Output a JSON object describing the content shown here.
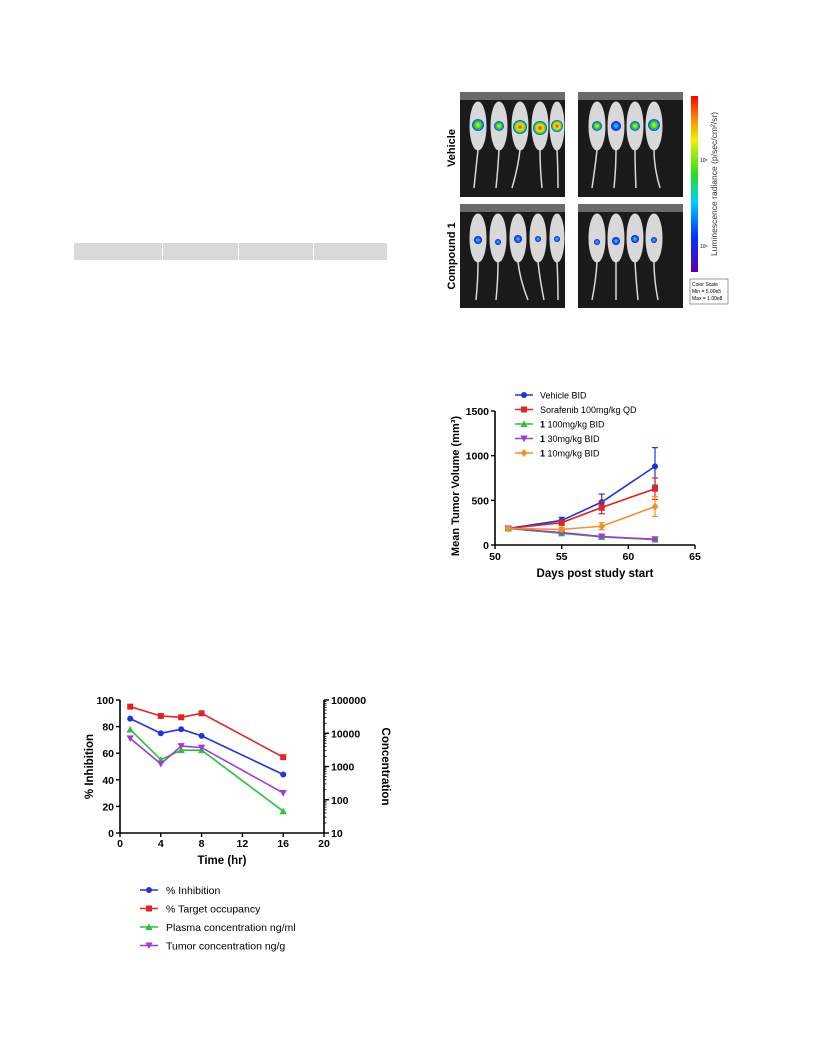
{
  "figure_imaging": {
    "row_labels": [
      "Vehicle",
      "Compound 1"
    ],
    "colorbar_label": "Luminescence radiance (p/sec/cm²/sr)",
    "colorbar_ticks": [
      "10⁶",
      "10⁵"
    ],
    "color_scale_title": "Color Scale",
    "color_scale_min": "Min = 5.00e5",
    "color_scale_max": "Max = 1.00e8",
    "colors": {
      "panel_bg": "#1a1a1a",
      "mouse": "#d8d8d8"
    }
  },
  "chart_data": [
    {
      "id": "tumor_volume",
      "type": "line",
      "xlabel": "Days post study start",
      "ylabel": "Mean Tumor Volume (mm³)",
      "xlim": [
        50,
        65
      ],
      "ylim": [
        0,
        1500
      ],
      "xticks": [
        50,
        55,
        60,
        65
      ],
      "yticks": [
        0,
        500,
        1000,
        1500
      ],
      "legend_position": "top",
      "series": [
        {
          "name": "Vehicle BID",
          "bold_prefix": "",
          "marker": "circle",
          "color": "#1f35d6",
          "x": [
            51,
            55,
            58,
            62
          ],
          "y": [
            185,
            275,
            480,
            880
          ],
          "err": [
            10,
            35,
            90,
            210
          ]
        },
        {
          "name": "Sorafenib 100mg/kg QD",
          "bold_prefix": "",
          "marker": "square",
          "color": "#e02424",
          "x": [
            51,
            55,
            58,
            62
          ],
          "y": [
            185,
            250,
            420,
            630
          ],
          "err": [
            10,
            30,
            70,
            120
          ]
        },
        {
          "name": "100mg/kg BID",
          "bold_prefix": "1",
          "marker": "triangle-up",
          "color": "#2fbf3a",
          "x": [
            51,
            55,
            58,
            62
          ],
          "y": [
            185,
            130,
            90,
            60
          ],
          "err": [
            8,
            15,
            12,
            10
          ]
        },
        {
          "name": "30mg/kg BID",
          "bold_prefix": "1",
          "marker": "triangle-down",
          "color": "#a23ad6",
          "x": [
            51,
            55,
            58,
            62
          ],
          "y": [
            185,
            140,
            95,
            65
          ],
          "err": [
            8,
            15,
            12,
            10
          ]
        },
        {
          "name": "10mg/kg BID",
          "bold_prefix": "1",
          "marker": "diamond",
          "color": "#f0922b",
          "x": [
            51,
            55,
            58,
            62
          ],
          "y": [
            185,
            175,
            210,
            430
          ],
          "err": [
            10,
            20,
            40,
            110
          ]
        }
      ]
    },
    {
      "id": "pk_pd",
      "type": "line",
      "xlabel": "Time (hr)",
      "ylabel": "% Inhibition",
      "y2label": "Concentration",
      "xlim": [
        0,
        20
      ],
      "ylim": [
        0,
        100
      ],
      "y2lim": [
        10,
        100000
      ],
      "y2scale": "log",
      "xticks": [
        0,
        4,
        8,
        12,
        16,
        20
      ],
      "yticks": [
        0,
        20,
        40,
        60,
        80,
        100
      ],
      "y2ticks": [
        10,
        100,
        1000,
        10000,
        100000
      ],
      "legend_position": "bottom",
      "series": [
        {
          "name": "% Inhibition",
          "axis": "left",
          "marker": "circle",
          "color": "#1f35d6",
          "x": [
            1,
            4,
            6,
            8,
            16
          ],
          "y": [
            86,
            75,
            78,
            73,
            44
          ]
        },
        {
          "name": "% Target occupancy",
          "axis": "left",
          "marker": "square",
          "color": "#e02424",
          "x": [
            1,
            4,
            6,
            8,
            16
          ],
          "y": [
            95,
            88,
            87,
            90,
            57
          ]
        },
        {
          "name": "Plasma concentration ng/ml",
          "axis": "right",
          "marker": "triangle-up",
          "color": "#2fbf3a",
          "x": [
            1,
            4,
            6,
            8,
            16
          ],
          "y": [
            13000,
            1600,
            3100,
            3100,
            45
          ]
        },
        {
          "name": "Tumor concentration ng/g",
          "axis": "right",
          "marker": "triangle-down",
          "color": "#a23ad6",
          "x": [
            1,
            4,
            6,
            8,
            16
          ],
          "y": [
            7000,
            1200,
            4100,
            3700,
            160
          ]
        }
      ]
    }
  ]
}
